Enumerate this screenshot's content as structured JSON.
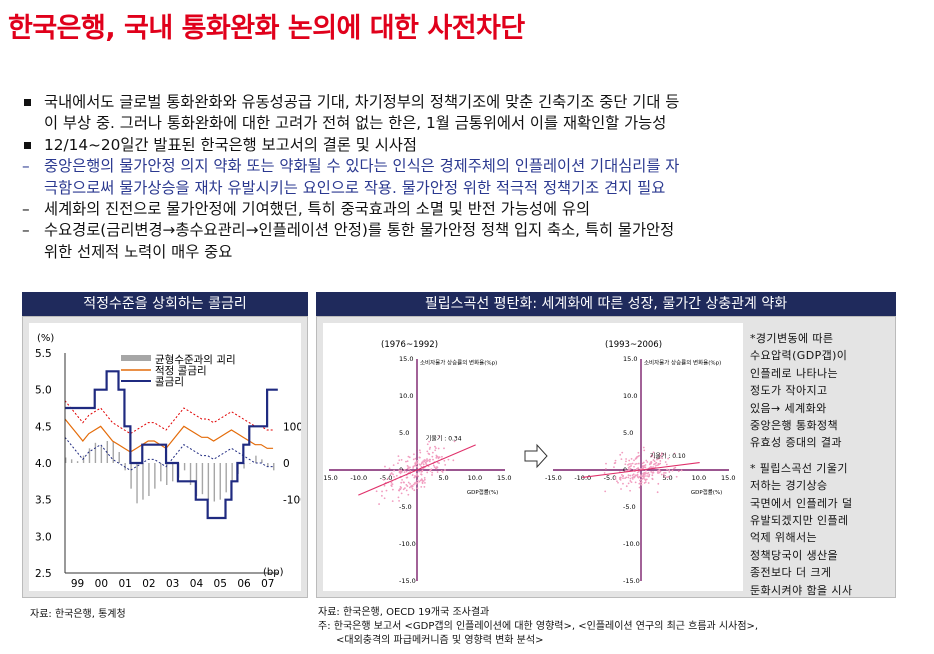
{
  "title": "한국은행, 국내 통화완화 논의에 대한 사전차단",
  "bullets": [
    {
      "marker": "square",
      "line1": "국내에서도 글로벌 통화완화와 유동성공급 기대, 차기정부의 정책기조에 맞춘 긴축기조 중단 기대 등",
      "line2": "이 부상 중. 그러나 통화완화에 대한 고려가 전혀 없는 한은, 1월 금통위에서 이를 재확인할 가능성"
    },
    {
      "marker": "square",
      "line1": "12/14~20일간 발표된 한국은행 보고서의 결론 및 시사점",
      "line2": ""
    },
    {
      "marker": "–",
      "line1": "중앙은행의 물가안정 의지 약화 또는 약화될 수 있다는 인식은 경제주체의 인플레이션 기대심리를 자",
      "line2": "극함으로써 물가상승을 재차 유발시키는 요인으로 작용. 물가안정 위한 적극적 정책기조 견지 필요",
      "color": "#2b3990"
    },
    {
      "marker": "–",
      "line1": "세계화의 진전으로 물가안정에 기여했던, 특히 중국효과의 소멸 및 반전 가능성에 유의",
      "line2": ""
    },
    {
      "marker": "–",
      "line1": "수요경로(금리변경→총수요관리→인플레이션 안정)를 통한 물가안정 정책 입지 축소, 특히 물가안정",
      "line2": "위한 선제적 노력이 매우 중요"
    }
  ],
  "left_panel": {
    "title": "적정수준을 상회하는 콜금리",
    "source": "자료: 한국은행, 통계청"
  },
  "right_panel": {
    "title": "필립스곡선 평탄화: 세계화에 따른 성장, 물가간 상충관계 약화",
    "source_lines": [
      "자료: 한국은행, OECD 19개국 조사결과",
      "주: 한국은행 보고서 <GDP갭의 인플레이션에 대한 영향력>, <인플레이션 연구의 최근 흐름과 시사점>,",
      "<대외충격의 파급메커니즘 및 영향력 변화 분석>"
    ],
    "note_lines": [
      "*경기변동에 따른",
      "수요압력(GDP갭)이",
      "인플레로 나타나는",
      "정도가 작아지고",
      "있음→ 세계화와",
      "중앙은행 통화정책",
      "유효성 증대의 결과",
      "",
      "* 필립스곡선 기울기",
      "저하는 경기상승",
      "국면에서 인플레가 덜",
      "유발되겠지만 인플레",
      "억제 위해서는",
      "정책당국이 생산을",
      "종전보다 더 크게",
      "둔화시켜야 함을 시사"
    ]
  },
  "chart_data": [
    {
      "type": "line",
      "title": "적정수준을 상회하는 콜금리",
      "ylabel_left": "(%)",
      "ylim_left": [
        2.5,
        5.5
      ],
      "yticks_left": [
        "5.5",
        "5.0",
        "4.5",
        "4.0",
        "3.5",
        "3.0",
        "2.5"
      ],
      "ylabel_right": "(bp)",
      "ylim_right": [
        -300,
        300
      ],
      "yticks_right": [
        "100",
        "0",
        "-100"
      ],
      "xlabels": [
        "99",
        "00",
        "01",
        "02",
        "03",
        "04",
        "05",
        "06",
        "07"
      ],
      "legend": [
        "균형수준과의 괴리",
        "적정 콜금리",
        "콜금리"
      ],
      "colors": {
        "gap": "#a6a6a6",
        "fair": "#e46c0a",
        "band": "#e00000",
        "call": "#1f2a80"
      },
      "x": [
        1999.0,
        1999.25,
        1999.5,
        1999.75,
        2000.0,
        2000.25,
        2000.5,
        2000.75,
        2001.0,
        2001.25,
        2001.5,
        2001.75,
        2002.0,
        2002.25,
        2002.5,
        2002.75,
        2003.0,
        2003.25,
        2003.5,
        2003.75,
        2004.0,
        2004.25,
        2004.5,
        2004.75,
        2005.0,
        2005.25,
        2005.5,
        2005.75,
        2006.0,
        2006.25,
        2006.5,
        2006.75,
        2007.0,
        2007.25,
        2007.5,
        2007.75
      ],
      "series": [
        {
          "name": "콜금리",
          "values": [
            4.75,
            4.75,
            4.75,
            4.75,
            4.75,
            5.0,
            5.0,
            5.25,
            5.25,
            5.0,
            4.5,
            4.0,
            4.0,
            4.25,
            4.25,
            4.25,
            4.25,
            4.0,
            4.0,
            3.75,
            3.75,
            3.75,
            3.5,
            3.5,
            3.25,
            3.25,
            3.25,
            3.5,
            3.75,
            4.0,
            4.25,
            4.5,
            4.5,
            4.5,
            5.0,
            5.0
          ]
        },
        {
          "name": "적정 콜금리",
          "values": [
            4.6,
            4.5,
            4.4,
            4.3,
            4.4,
            4.45,
            4.5,
            4.4,
            4.3,
            4.25,
            4.2,
            4.15,
            4.2,
            4.25,
            4.3,
            4.3,
            4.25,
            4.2,
            4.3,
            4.4,
            4.5,
            4.45,
            4.4,
            4.35,
            4.35,
            4.3,
            4.35,
            4.4,
            4.45,
            4.4,
            4.35,
            4.3,
            4.25,
            4.25,
            4.2,
            4.2
          ]
        },
        {
          "name": "균형수준과의 괴리",
          "values": [
            15,
            10,
            5,
            20,
            40,
            55,
            45,
            60,
            60,
            30,
            -20,
            -70,
            -110,
            -100,
            -90,
            -70,
            -50,
            -60,
            -50,
            -40,
            -20,
            -60,
            -90,
            -85,
            -100,
            -105,
            -100,
            -80,
            -50,
            -30,
            -15,
            0,
            20,
            10,
            -10,
            -20
          ]
        }
      ]
    },
    {
      "type": "scatter",
      "title": "(1976~1992)",
      "xlabel": "GDP갭률(%)",
      "ylabel": "소비자물가 상승률의 변화율(%p)",
      "xlim": [
        -15,
        15
      ],
      "ylim": [
        -15,
        15
      ],
      "xticks": [
        "-15.0",
        "-10.0",
        "-5.0",
        "0",
        "5.0",
        "10.0",
        "15.0"
      ],
      "yticks": [
        "15.0",
        "10.0",
        "5.0",
        "0",
        "-5.0",
        "-10.0",
        "-15.0"
      ],
      "slope_label": "기울기 : 0.34",
      "slope": 0.34
    },
    {
      "type": "scatter",
      "title": "(1993~2006)",
      "xlabel": "GDP갭률(%)",
      "ylabel": "소비자물가 상승률의 변화율(%p)",
      "xlim": [
        -15,
        15
      ],
      "ylim": [
        -15,
        15
      ],
      "xticks": [
        "-15.0",
        "-10.0",
        "-5.0",
        "0",
        "5.0",
        "10.0",
        "15.0"
      ],
      "yticks": [
        "15.0",
        "10.0",
        "5.0",
        "0",
        "-5.0",
        "-10.0",
        "-15.0"
      ],
      "slope_label": "기울기 : 0.10",
      "slope": 0.1
    }
  ]
}
